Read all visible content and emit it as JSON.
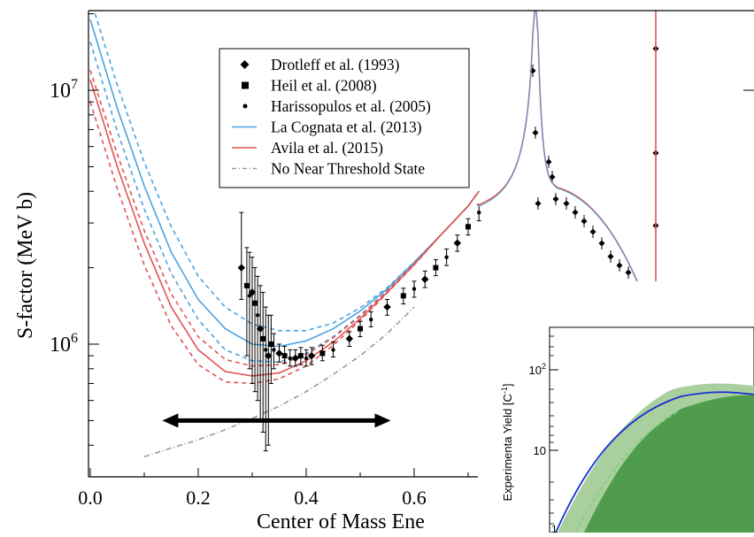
{
  "chart_data": [
    {
      "type": "scatter",
      "xlabel": "Center of Mass Ene",
      "ylabel": "S-factor (MeV b)",
      "xscale": "linear",
      "yscale": "log",
      "xlim": [
        0.0,
        0.74
      ],
      "ylim": [
        350000,
        22000000
      ],
      "x_ticks": [
        {
          "value": 0.0,
          "label": "0.0"
        },
        {
          "value": 0.2,
          "label": "0.2"
        },
        {
          "value": 0.4,
          "label": "0.4"
        },
        {
          "value": 0.6,
          "label": "0.6"
        }
      ],
      "y_ticks": [
        {
          "value": 1000000,
          "base": "10",
          "exp": "6"
        },
        {
          "value": 10000000,
          "base": "10",
          "exp": "7"
        }
      ],
      "legend_position": "top-center",
      "legend": [
        {
          "label": "Drotleff et al. (1993)",
          "marker": "diamond",
          "color": "#000000"
        },
        {
          "label": "Heil et al. (2008)",
          "marker": "square",
          "color": "#000000"
        },
        {
          "label": "Harissopulos et al. (2005)",
          "marker": "dot",
          "color": "#000000"
        },
        {
          "label": "La Cognata et al. (2013)",
          "line": "solid",
          "color": "#4aa3df"
        },
        {
          "label": "Avila et al. (2015)",
          "line": "solid",
          "color": "#e05555"
        },
        {
          "label": "No Near Threshold State",
          "line": "dashdot",
          "color": "#999999"
        }
      ],
      "colors": {
        "la_cognata": "#4aa3df",
        "avila": "#e05555",
        "no_threshold": "#999999",
        "data": "#000000"
      },
      "curves": [
        {
          "x": [
            0.0,
            0.05,
            0.1,
            0.15,
            0.2,
            0.25,
            0.3,
            0.35,
            0.4,
            0.45,
            0.5,
            0.55,
            0.6,
            0.65,
            0.7,
            0.72
          ],
          "values": [
            19000000,
            8500000,
            4200000,
            2300000,
            1500000,
            1150000,
            1000000,
            980000,
            1030000,
            1150000,
            1350000,
            1650000,
            2100000,
            2700000,
            3500000,
            4000000
          ]
        },
        {
          "x": [
            0.0,
            0.05,
            0.1,
            0.15,
            0.2,
            0.25,
            0.3,
            0.35,
            0.4,
            0.45,
            0.5,
            0.55,
            0.6,
            0.65,
            0.7,
            0.72
          ],
          "values": [
            23000000,
            10500000,
            5200000,
            2900000,
            1850000,
            1400000,
            1200000,
            1130000,
            1130000,
            1210000,
            1390000,
            1670000,
            2100000,
            2700000,
            3500000,
            4000000
          ]
        },
        {
          "x": [
            0.0,
            0.05,
            0.1,
            0.15,
            0.2,
            0.25,
            0.3,
            0.35,
            0.4,
            0.45,
            0.5,
            0.55,
            0.6,
            0.65,
            0.7,
            0.72
          ],
          "values": [
            15500000,
            6900000,
            3400000,
            1900000,
            1250000,
            950000,
            860000,
            850000,
            920000,
            1070000,
            1300000,
            1620000,
            2080000,
            2700000,
            3500000,
            4000000
          ]
        },
        {
          "x": [
            0.0,
            0.05,
            0.1,
            0.15,
            0.2,
            0.25,
            0.3,
            0.35,
            0.4,
            0.45,
            0.5,
            0.55,
            0.6,
            0.65,
            0.7,
            0.72
          ],
          "values": [
            11000000,
            5000000,
            2500000,
            1400000,
            950000,
            780000,
            750000,
            770000,
            860000,
            1020000,
            1260000,
            1600000,
            2060000,
            2700000,
            3500000,
            4000000
          ]
        },
        {
          "x": [
            0.0,
            0.05,
            0.1,
            0.15,
            0.2,
            0.25,
            0.3,
            0.35,
            0.4,
            0.45,
            0.5,
            0.55,
            0.6,
            0.65,
            0.7,
            0.72
          ],
          "values": [
            12000000,
            5600000,
            2800000,
            1580000,
            1070000,
            870000,
            820000,
            830000,
            910000,
            1060000,
            1290000,
            1620000,
            2080000,
            2700000,
            3500000,
            4000000
          ]
        },
        {
          "x": [
            0.0,
            0.05,
            0.1,
            0.15,
            0.2,
            0.25,
            0.3,
            0.35,
            0.4,
            0.45,
            0.5,
            0.55,
            0.6,
            0.65,
            0.7,
            0.72
          ],
          "values": [
            9000000,
            4100000,
            2050000,
            1180000,
            830000,
            710000,
            700000,
            730000,
            820000,
            990000,
            1240000,
            1590000,
            2050000,
            2700000,
            3500000,
            4000000
          ]
        },
        {
          "x": [
            0.1,
            0.15,
            0.2,
            0.25,
            0.3,
            0.35,
            0.4,
            0.45,
            0.5,
            0.55,
            0.6
          ],
          "values": [
            360000,
            390000,
            420000,
            460000,
            510000,
            570000,
            650000,
            760000,
            900000,
            1100000,
            1400000
          ]
        }
      ],
      "points": [
        {
          "x": 0.28,
          "y": 2000000,
          "err": [
            1500000,
            3300000
          ]
        },
        {
          "x": 0.29,
          "y": 1700000,
          "err": [
            900000,
            2400000
          ]
        },
        {
          "x": 0.295,
          "y": 1550000,
          "err": [
            800000,
            2300000
          ]
        },
        {
          "x": 0.3,
          "y": 1600000,
          "err": [
            700000,
            2200000
          ]
        },
        {
          "x": 0.305,
          "y": 1450000,
          "err": [
            650000,
            2000000
          ]
        },
        {
          "x": 0.31,
          "y": 1300000,
          "err": [
            600000,
            1850000
          ]
        },
        {
          "x": 0.315,
          "y": 1150000,
          "err": [
            500000,
            1700000
          ]
        },
        {
          "x": 0.32,
          "y": 1050000,
          "err": [
            450000,
            1600000
          ]
        },
        {
          "x": 0.325,
          "y": 950000,
          "err": [
            380000,
            1400000
          ]
        },
        {
          "x": 0.33,
          "y": 900000,
          "err": [
            400000,
            1300000
          ]
        },
        {
          "x": 0.335,
          "y": 1000000,
          "err": [
            700000,
            1300000
          ]
        },
        {
          "x": 0.34,
          "y": 950000,
          "err": [
            800000,
            1100000
          ]
        },
        {
          "x": 0.35,
          "y": 920000,
          "err": [
            850000,
            1000000
          ]
        },
        {
          "x": 0.36,
          "y": 900000,
          "err": [
            840000,
            980000
          ]
        },
        {
          "x": 0.37,
          "y": 880000,
          "err": [
            820000,
            950000
          ]
        },
        {
          "x": 0.38,
          "y": 880000,
          "err": [
            820000,
            950000
          ]
        },
        {
          "x": 0.39,
          "y": 900000,
          "err": [
            830000,
            970000
          ]
        },
        {
          "x": 0.4,
          "y": 880000,
          "err": [
            820000,
            950000
          ]
        },
        {
          "x": 0.41,
          "y": 900000,
          "err": [
            830000,
            970000
          ]
        },
        {
          "x": 0.43,
          "y": 920000,
          "err": [
            860000,
            990000
          ]
        },
        {
          "x": 0.45,
          "y": 950000,
          "err": [
            890000,
            1020000
          ]
        },
        {
          "x": 0.48,
          "y": 1050000,
          "err": [
            980000,
            1120000
          ]
        },
        {
          "x": 0.5,
          "y": 1150000,
          "err": [
            1070000,
            1230000
          ]
        },
        {
          "x": 0.52,
          "y": 1250000,
          "err": [
            1170000,
            1340000
          ]
        },
        {
          "x": 0.55,
          "y": 1400000,
          "err": [
            1300000,
            1500000
          ]
        },
        {
          "x": 0.58,
          "y": 1550000,
          "err": [
            1440000,
            1660000
          ]
        },
        {
          "x": 0.6,
          "y": 1650000,
          "err": [
            1530000,
            1770000
          ]
        },
        {
          "x": 0.62,
          "y": 1800000,
          "err": [
            1670000,
            1940000
          ]
        },
        {
          "x": 0.64,
          "y": 2000000,
          "err": [
            1860000,
            2150000
          ]
        },
        {
          "x": 0.66,
          "y": 2200000,
          "err": [
            2040000,
            2370000
          ]
        },
        {
          "x": 0.68,
          "y": 2500000,
          "err": [
            2320000,
            2690000
          ]
        },
        {
          "x": 0.7,
          "y": 2900000,
          "err": [
            2690000,
            3120000
          ]
        },
        {
          "x": 0.72,
          "y": 3300000,
          "err": [
            3060000,
            3550000
          ]
        }
      ],
      "arrow_range": [
        0.14,
        0.55
      ],
      "arrow_y": 500000
    },
    {
      "type": "area",
      "ylabel": "Experimenta Yield [C",
      "ylabel_sup": "-1",
      "yscale": "log",
      "y_ticks": [
        {
          "value": 10,
          "label": "10"
        },
        {
          "value": 100,
          "base": "10",
          "exp": "2"
        }
      ],
      "colors": {
        "outer_band": "#a9cf9f",
        "inner_band": "#4f9d4c",
        "curve": "#1a2fd1",
        "dashed": "#7fd07a"
      }
    }
  ]
}
